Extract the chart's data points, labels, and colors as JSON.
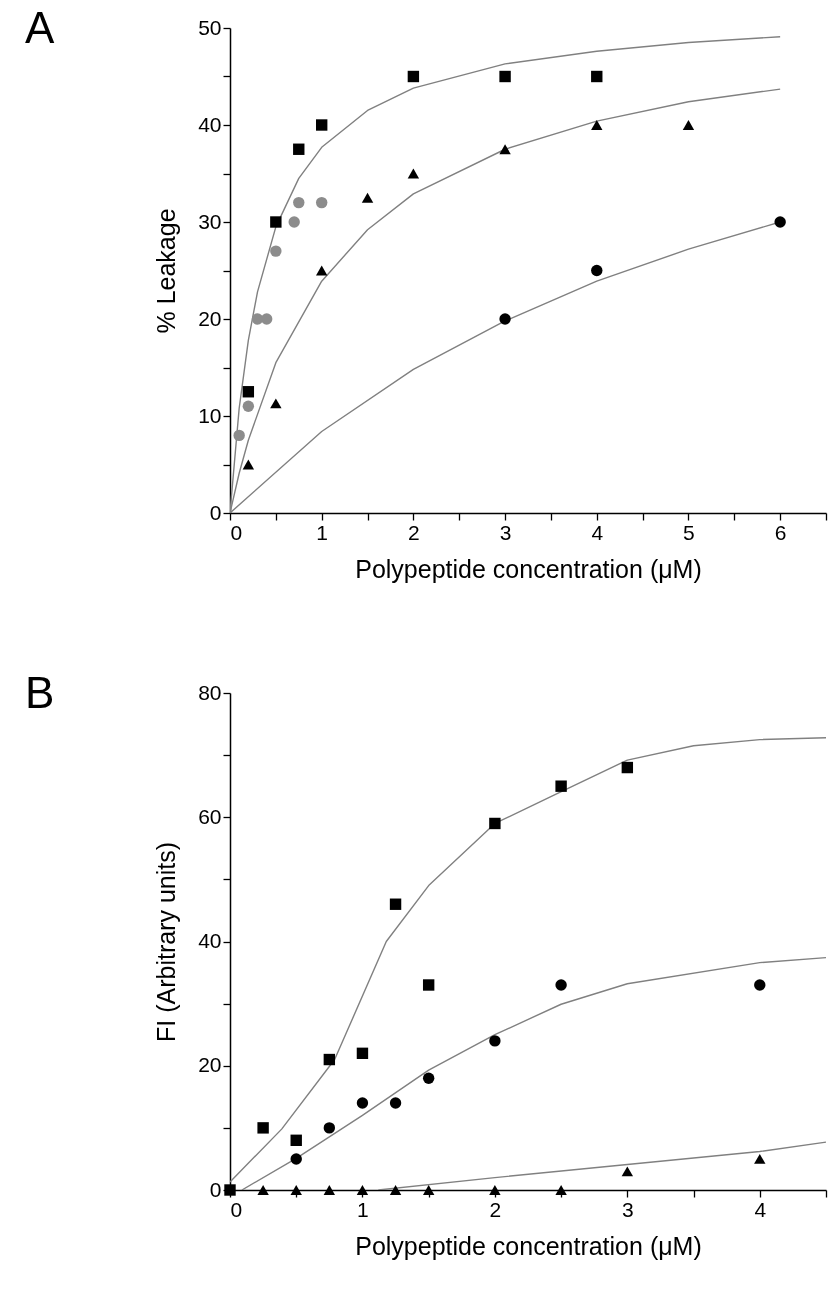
{
  "chart_data": [
    {
      "type": "scatter",
      "title": "A",
      "xlabel": "Polypeptide concentration (μM)",
      "ylabel": "% Leakage",
      "xlim": [
        0,
        6.5
      ],
      "ylim": [
        0,
        50
      ],
      "xticks": [
        0,
        {
          "value": 0.5,
          "label": null
        },
        1,
        {
          "value": 1.5,
          "label": null
        },
        2,
        {
          "value": 2.5,
          "label": null
        },
        3,
        {
          "value": 3.5,
          "label": null
        },
        4,
        {
          "value": 4.5,
          "label": null
        },
        5,
        {
          "value": 5.5,
          "label": null
        },
        6,
        {
          "value": 6.5,
          "label": null
        }
      ],
      "yticks": [
        0,
        {
          "value": 5,
          "label": null
        },
        10,
        {
          "value": 15,
          "label": null
        },
        20,
        {
          "value": 25,
          "label": null
        },
        30,
        {
          "value": 35,
          "label": null
        },
        40,
        {
          "value": 45,
          "label": null
        },
        50
      ],
      "grid": false,
      "series": [
        {
          "type": "line",
          "marker": "none",
          "color": "#808080",
          "x": [
            0,
            0.1,
            0.2,
            0.3,
            0.5,
            0.75,
            1,
            1.5,
            2,
            3,
            4,
            5,
            6
          ],
          "values": [
            0,
            10.8,
            17.8,
            22.8,
            29.5,
            34.5,
            37.7,
            41.5,
            43.8,
            46.3,
            47.6,
            48.5,
            49.1
          ]
        },
        {
          "type": "line",
          "marker": "none",
          "color": "#808080",
          "x": [
            0,
            0.1,
            0.2,
            0.5,
            1,
            1.5,
            2,
            3,
            4,
            5,
            6
          ],
          "values": [
            0,
            4.1,
            7.5,
            15.5,
            23.9,
            29.2,
            32.9,
            37.5,
            40.4,
            42.4,
            43.7
          ]
        },
        {
          "type": "line",
          "marker": "none",
          "color": "#808080",
          "x": [
            0,
            1,
            2,
            3,
            4,
            5,
            6
          ],
          "values": [
            0,
            8.4,
            14.8,
            19.8,
            23.9,
            27.2,
            30
          ]
        },
        {
          "marker": "square",
          "color": "#000000",
          "x": [
            0.2,
            0.5,
            0.75,
            1,
            2,
            3,
            4
          ],
          "values": [
            12.5,
            30,
            37.5,
            40,
            45,
            45,
            45
          ]
        },
        {
          "marker": "triangle",
          "color": "#000000",
          "x": [
            0.2,
            0.5,
            1,
            1.5,
            2,
            3,
            4,
            5
          ],
          "values": [
            5,
            11.3,
            25,
            32.5,
            35,
            37.5,
            40,
            40
          ]
        },
        {
          "marker": "circle",
          "color": "#000000",
          "x": [
            3,
            4,
            6
          ],
          "values": [
            20,
            25,
            30
          ]
        },
        {
          "marker": "circle",
          "color": "#8c8c8c",
          "x": [
            0.1,
            0.2,
            0.3,
            0.4,
            0.5,
            0.7,
            0.75,
            1
          ],
          "values": [
            8,
            11,
            20,
            20,
            27,
            30,
            32,
            32
          ]
        }
      ]
    },
    {
      "type": "scatter",
      "title": "B",
      "xlabel": "Polypeptide concentration (μM)",
      "ylabel": "FI (Arbitrary units)",
      "xlim": [
        0,
        4.5
      ],
      "ylim": [
        0,
        80
      ],
      "xticks": [
        0,
        {
          "value": 0.5,
          "label": null
        },
        1,
        {
          "value": 1.5,
          "label": null
        },
        2,
        {
          "value": 2.5,
          "label": null
        },
        3,
        {
          "value": 3.5,
          "label": null
        },
        4,
        {
          "value": 4.5,
          "label": null
        }
      ],
      "yticks": [
        0,
        {
          "value": 10,
          "label": null
        },
        20,
        {
          "value": 30,
          "label": null
        },
        40,
        {
          "value": 50,
          "label": null
        },
        60,
        {
          "value": 70,
          "label": null
        },
        80
      ],
      "grid": false,
      "series": [
        {
          "type": "line",
          "marker": "none",
          "color": "#808080",
          "x": [
            0,
            0.39,
            0.79,
            1.18,
            1.5,
            2,
            2.45,
            3,
            3.5,
            4,
            4.5
          ],
          "values": [
            1.3,
            9.8,
            21,
            40,
            49,
            59,
            63.6,
            69.2,
            71.5,
            72.5,
            72.8
          ]
        },
        {
          "type": "line",
          "marker": "none",
          "color": "#808080",
          "x": [
            0.09,
            0.5,
            1,
            1.5,
            2,
            2.5,
            3,
            4,
            4.5
          ],
          "values": [
            0,
            5.1,
            12,
            19.3,
            25,
            29.9,
            33.2,
            36.6,
            37.4
          ]
        },
        {
          "type": "line",
          "marker": "none",
          "color": "#808080",
          "x": [
            1.12,
            2,
            3,
            4,
            4.5
          ],
          "values": [
            0,
            2,
            4.1,
            6.2,
            7.7
          ]
        },
        {
          "marker": "square",
          "color": "#000000",
          "x": [
            0,
            0.25,
            0.5,
            0.75,
            1,
            1.25,
            1.5,
            2,
            2.5,
            3
          ],
          "values": [
            0,
            10,
            8,
            21,
            22,
            46,
            33,
            59,
            65,
            68
          ]
        },
        {
          "marker": "circle",
          "color": "#000000",
          "x": [
            0.5,
            0.75,
            1,
            1.25,
            1.5,
            2,
            2.5,
            4
          ],
          "values": [
            5,
            10,
            14,
            14,
            18,
            24,
            33,
            33
          ]
        },
        {
          "marker": "triangle",
          "color": "#000000",
          "x": [
            0.25,
            0.5,
            0.75,
            1,
            1.25,
            1.5,
            2,
            2.5,
            3,
            4
          ],
          "values": [
            0,
            0,
            0,
            0,
            0,
            0,
            0,
            0,
            3,
            5
          ]
        }
      ]
    }
  ]
}
